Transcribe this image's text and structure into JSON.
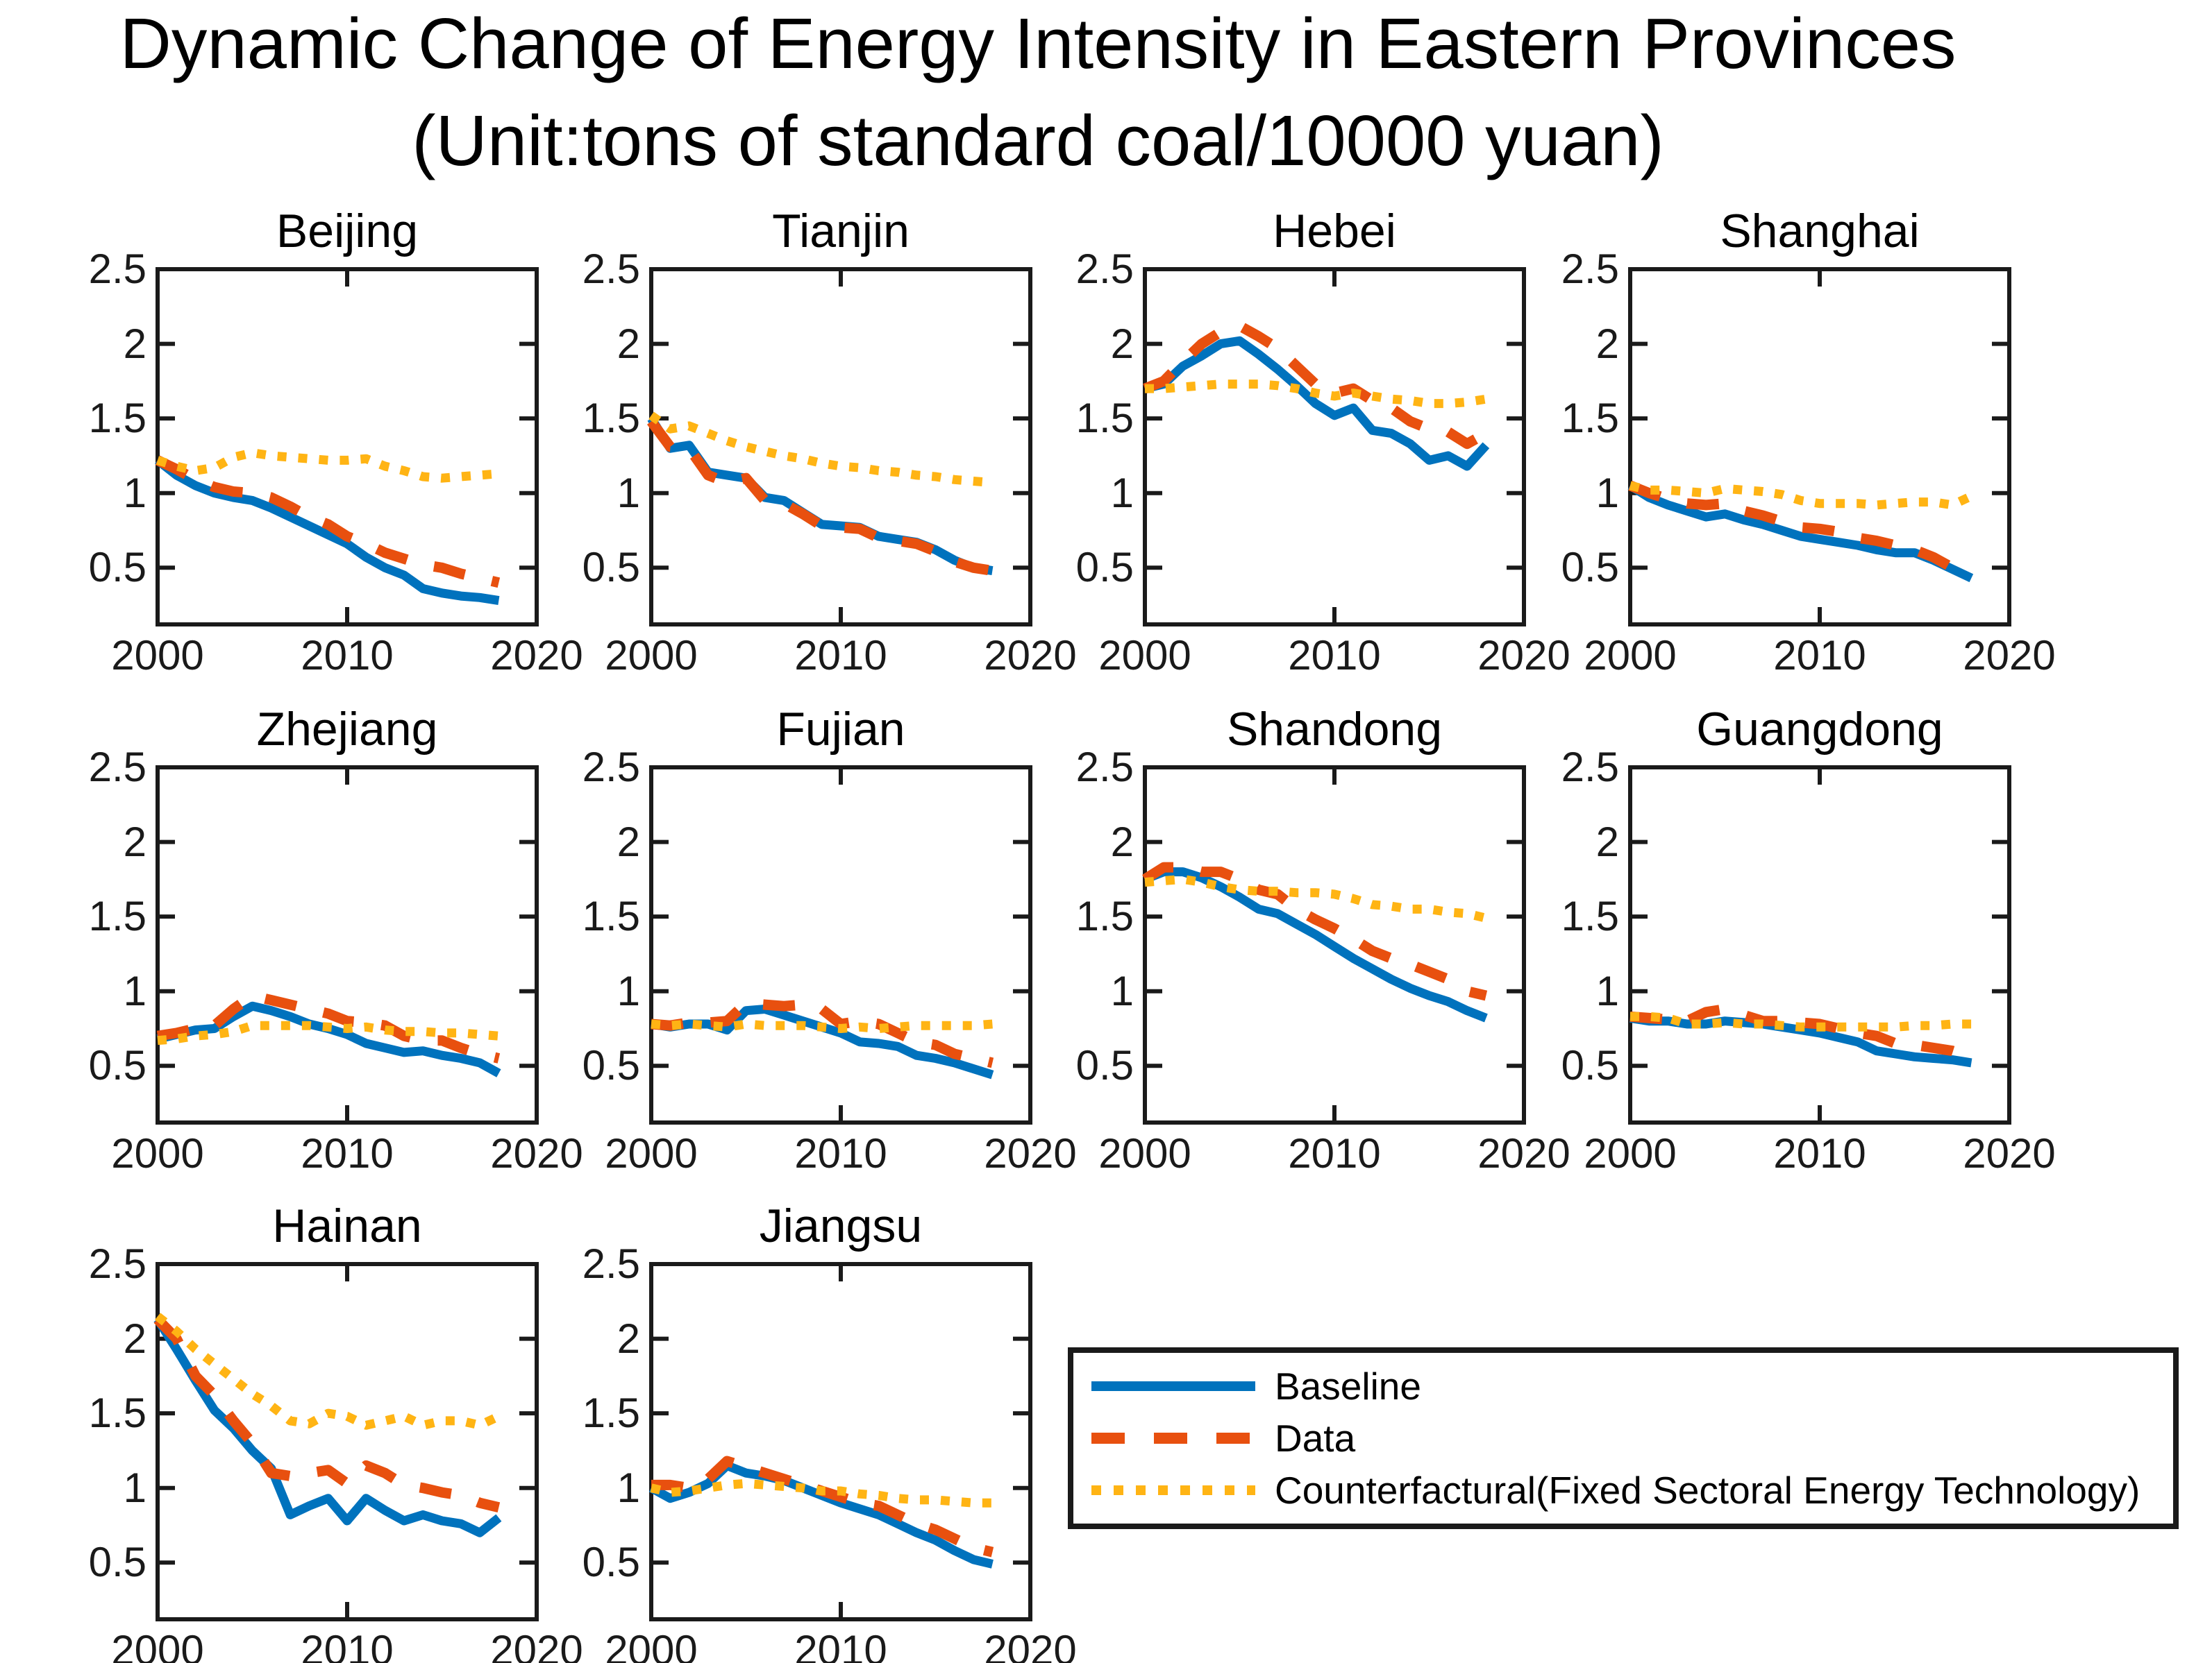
{
  "title": {
    "line1": "Dynamic Change of Energy Intensity in Eastern Provinces",
    "line2": "(Unit:tons of standard coal/10000 yuan)"
  },
  "legend": {
    "items": [
      {
        "label": "Baseline",
        "series": "baseline",
        "color": "#0072BD",
        "style": "solid"
      },
      {
        "label": "Data",
        "series": "data",
        "color": "#E8500F",
        "style": "dashed"
      },
      {
        "label": "Counterfactural(Fixed Sectoral Energy Technology)",
        "series": "counterfactual",
        "color": "#FFB414",
        "style": "dotted"
      }
    ]
  },
  "chart_data": {
    "type": "line",
    "title": "Dynamic Change of Energy Intensity in Eastern Provinces (Unit:tons of standard coal/10000 yuan)",
    "xlabel": "",
    "ylabel": "",
    "x": [
      2000,
      2001,
      2002,
      2003,
      2004,
      2005,
      2006,
      2007,
      2008,
      2009,
      2010,
      2011,
      2012,
      2013,
      2014,
      2015,
      2016,
      2017,
      2018
    ],
    "axes": {
      "xlim": [
        2000,
        2020
      ],
      "ylim": [
        0.12,
        2.5
      ],
      "x_ticks": [
        "2000",
        "2010",
        "2020"
      ],
      "y_ticks": [
        0.5,
        1,
        1.5,
        2,
        2.5
      ],
      "grid": false,
      "legend_position": "bottom-right"
    },
    "panels": [
      {
        "name": "Beijing",
        "series": {
          "baseline": [
            1.22,
            1.12,
            1.05,
            1.0,
            0.97,
            0.95,
            0.9,
            0.84,
            0.78,
            0.72,
            0.66,
            0.57,
            0.5,
            0.45,
            0.36,
            0.33,
            0.31,
            0.3,
            0.28
          ],
          "data": [
            1.22,
            1.16,
            1.09,
            1.04,
            1.01,
            1.0,
            0.97,
            0.91,
            0.84,
            0.79,
            0.71,
            0.66,
            0.6,
            0.56,
            0.52,
            0.5,
            0.46,
            0.43,
            0.4
          ],
          "counterfactual": [
            1.22,
            1.18,
            1.15,
            1.17,
            1.24,
            1.27,
            1.25,
            1.24,
            1.23,
            1.22,
            1.22,
            1.23,
            1.18,
            1.15,
            1.11,
            1.1,
            1.11,
            1.12,
            1.13
          ]
        }
      },
      {
        "name": "Tianjin",
        "series": {
          "baseline": [
            1.5,
            1.3,
            1.32,
            1.14,
            1.12,
            1.1,
            0.97,
            0.95,
            0.87,
            0.79,
            0.78,
            0.77,
            0.71,
            0.69,
            0.67,
            0.62,
            0.55,
            0.5,
            0.48
          ],
          "data": [
            1.48,
            1.31,
            1.3,
            1.12,
            1.07,
            1.1,
            0.95,
            0.93,
            0.86,
            0.78,
            0.77,
            0.76,
            0.7,
            0.68,
            0.66,
            0.61,
            0.54,
            0.5,
            0.48
          ],
          "counterfactual": [
            1.52,
            1.43,
            1.45,
            1.4,
            1.35,
            1.31,
            1.28,
            1.25,
            1.23,
            1.2,
            1.18,
            1.17,
            1.15,
            1.14,
            1.12,
            1.11,
            1.09,
            1.08,
            1.07
          ]
        }
      },
      {
        "name": "Hebei",
        "series": {
          "baseline": [
            1.7,
            1.73,
            1.85,
            1.92,
            2.0,
            2.02,
            1.93,
            1.83,
            1.72,
            1.6,
            1.52,
            1.57,
            1.42,
            1.4,
            1.33,
            1.22,
            1.25,
            1.18,
            1.32
          ],
          "data": [
            1.7,
            1.75,
            1.88,
            2.0,
            2.08,
            2.12,
            2.05,
            1.97,
            1.85,
            1.73,
            1.67,
            1.7,
            1.62,
            1.57,
            1.48,
            1.43,
            1.41,
            1.33,
            1.4
          ],
          "counterfactual": [
            1.7,
            1.7,
            1.71,
            1.72,
            1.73,
            1.73,
            1.73,
            1.72,
            1.7,
            1.67,
            1.65,
            1.67,
            1.65,
            1.63,
            1.62,
            1.6,
            1.6,
            1.61,
            1.63
          ]
        }
      },
      {
        "name": "Shanghai",
        "series": {
          "baseline": [
            1.05,
            0.97,
            0.92,
            0.88,
            0.84,
            0.86,
            0.82,
            0.79,
            0.75,
            0.71,
            0.69,
            0.67,
            0.65,
            0.62,
            0.6,
            0.6,
            0.55,
            0.49,
            0.43
          ],
          "data": [
            1.05,
            1.0,
            0.96,
            0.93,
            0.92,
            0.93,
            0.88,
            0.85,
            0.81,
            0.77,
            0.76,
            0.74,
            0.7,
            0.68,
            0.65,
            0.62,
            0.57,
            0.5,
            0.46
          ],
          "counterfactual": [
            1.05,
            1.02,
            1.02,
            1.01,
            1.0,
            1.03,
            1.02,
            1.01,
            0.99,
            0.95,
            0.93,
            0.93,
            0.93,
            0.92,
            0.93,
            0.94,
            0.94,
            0.92,
            0.98
          ]
        }
      },
      {
        "name": "Zhejiang",
        "series": {
          "baseline": [
            0.68,
            0.71,
            0.74,
            0.75,
            0.83,
            0.9,
            0.87,
            0.83,
            0.78,
            0.75,
            0.71,
            0.65,
            0.62,
            0.59,
            0.6,
            0.57,
            0.55,
            0.52,
            0.45
          ],
          "data": [
            0.7,
            0.72,
            0.75,
            0.77,
            0.88,
            0.97,
            0.94,
            0.91,
            0.88,
            0.85,
            0.8,
            0.79,
            0.77,
            0.7,
            0.67,
            0.67,
            0.62,
            0.58,
            0.55
          ],
          "counterfactual": [
            0.67,
            0.68,
            0.7,
            0.71,
            0.73,
            0.77,
            0.77,
            0.77,
            0.77,
            0.76,
            0.75,
            0.76,
            0.74,
            0.73,
            0.73,
            0.72,
            0.72,
            0.71,
            0.7
          ]
        }
      },
      {
        "name": "Fujian",
        "series": {
          "baseline": [
            0.78,
            0.76,
            0.78,
            0.78,
            0.74,
            0.87,
            0.88,
            0.84,
            0.8,
            0.76,
            0.72,
            0.66,
            0.65,
            0.63,
            0.57,
            0.55,
            0.52,
            0.48,
            0.44
          ],
          "data": [
            0.78,
            0.77,
            0.79,
            0.79,
            0.8,
            0.92,
            0.91,
            0.9,
            0.91,
            0.88,
            0.78,
            0.8,
            0.78,
            0.72,
            0.66,
            0.64,
            0.58,
            0.55,
            0.52
          ],
          "counterfactual": [
            0.78,
            0.77,
            0.78,
            0.77,
            0.76,
            0.78,
            0.77,
            0.77,
            0.77,
            0.76,
            0.75,
            0.76,
            0.75,
            0.76,
            0.77,
            0.77,
            0.77,
            0.77,
            0.78
          ]
        }
      },
      {
        "name": "Shandong",
        "series": {
          "baseline": [
            1.75,
            1.8,
            1.8,
            1.76,
            1.7,
            1.63,
            1.55,
            1.52,
            1.45,
            1.38,
            1.3,
            1.22,
            1.15,
            1.08,
            1.02,
            0.97,
            0.93,
            0.87,
            0.82
          ],
          "data": [
            1.75,
            1.83,
            1.83,
            1.8,
            1.8,
            1.75,
            1.68,
            1.65,
            1.55,
            1.48,
            1.42,
            1.35,
            1.27,
            1.22,
            1.18,
            1.13,
            1.08,
            1.0,
            0.97
          ],
          "counterfactual": [
            1.73,
            1.74,
            1.75,
            1.73,
            1.7,
            1.68,
            1.67,
            1.67,
            1.66,
            1.66,
            1.65,
            1.62,
            1.58,
            1.57,
            1.55,
            1.55,
            1.53,
            1.52,
            1.49
          ]
        }
      },
      {
        "name": "Guangdong",
        "series": {
          "baseline": [
            0.82,
            0.8,
            0.8,
            0.78,
            0.78,
            0.8,
            0.79,
            0.78,
            0.76,
            0.74,
            0.72,
            0.69,
            0.66,
            0.6,
            0.58,
            0.56,
            0.55,
            0.54,
            0.52
          ],
          "data": [
            0.83,
            0.82,
            0.81,
            0.8,
            0.86,
            0.88,
            0.84,
            0.8,
            0.8,
            0.79,
            0.78,
            0.75,
            0.72,
            0.7,
            0.65,
            0.64,
            0.62,
            0.6,
            0.56
          ],
          "counterfactual": [
            0.83,
            0.83,
            0.82,
            0.78,
            0.78,
            0.79,
            0.78,
            0.78,
            0.77,
            0.76,
            0.76,
            0.76,
            0.76,
            0.76,
            0.76,
            0.77,
            0.77,
            0.78,
            0.78
          ]
        }
      },
      {
        "name": "Hainan",
        "series": {
          "baseline": [
            2.13,
            1.93,
            1.72,
            1.52,
            1.4,
            1.25,
            1.13,
            0.82,
            0.88,
            0.93,
            0.78,
            0.93,
            0.85,
            0.78,
            0.82,
            0.78,
            0.76,
            0.7,
            0.8
          ],
          "data": [
            2.13,
            2.0,
            1.75,
            1.62,
            1.45,
            1.3,
            1.1,
            1.08,
            1.1,
            1.12,
            1.03,
            1.15,
            1.1,
            1.02,
            1.0,
            0.97,
            0.95,
            0.9,
            0.87
          ],
          "counterfactual": [
            2.15,
            2.05,
            1.93,
            1.83,
            1.73,
            1.63,
            1.55,
            1.45,
            1.43,
            1.5,
            1.48,
            1.42,
            1.45,
            1.48,
            1.42,
            1.45,
            1.45,
            1.42,
            1.48
          ]
        }
      },
      {
        "name": "Jiangsu",
        "series": {
          "baseline": [
            1.0,
            0.93,
            0.97,
            1.03,
            1.15,
            1.1,
            1.08,
            1.05,
            1.0,
            0.95,
            0.9,
            0.86,
            0.82,
            0.76,
            0.7,
            0.65,
            0.58,
            0.52,
            0.49
          ],
          "data": [
            1.02,
            1.02,
            1.0,
            1.06,
            1.18,
            1.14,
            1.1,
            1.06,
            1.02,
            0.98,
            0.94,
            0.9,
            0.88,
            0.82,
            0.76,
            0.72,
            0.66,
            0.6,
            0.57
          ],
          "counterfactual": [
            1.0,
            0.97,
            0.98,
            1.0,
            1.02,
            1.03,
            1.02,
            1.01,
            1.0,
            0.98,
            0.98,
            0.96,
            0.95,
            0.93,
            0.92,
            0.92,
            0.91,
            0.9,
            0.9
          ]
        }
      }
    ]
  }
}
